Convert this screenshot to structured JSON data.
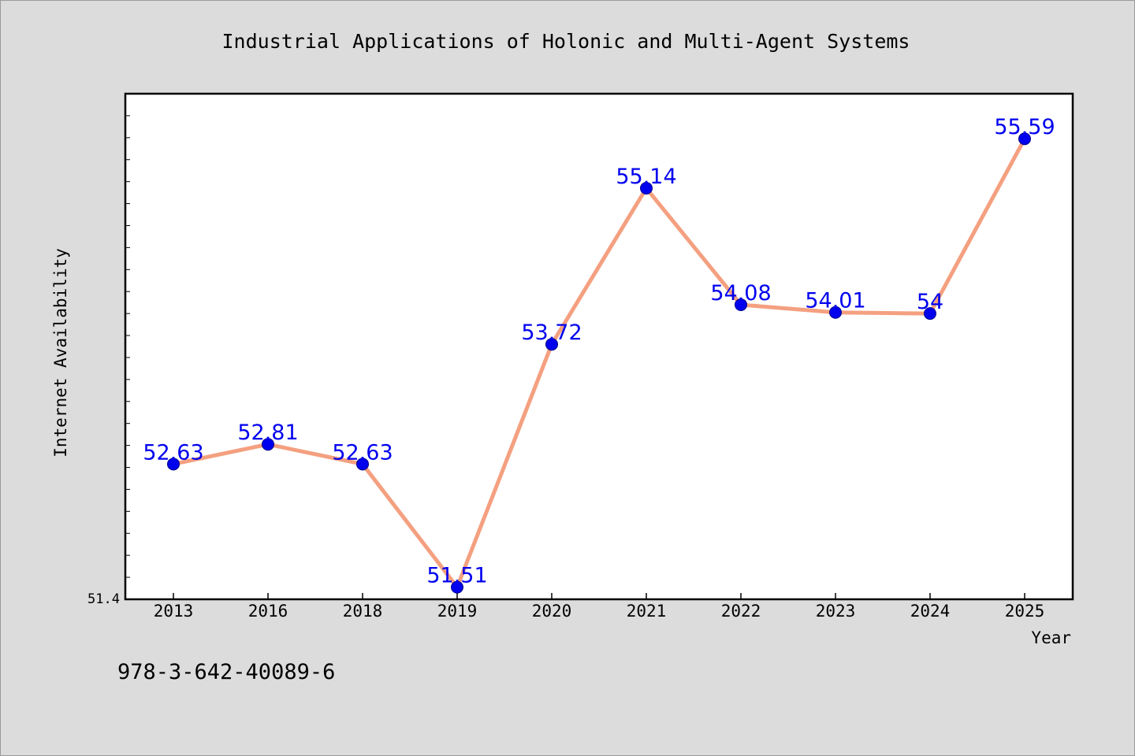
{
  "chart_data": {
    "type": "line",
    "title": "Industrial Applications of Holonic and Multi-Agent Systems",
    "xlabel": "Year",
    "ylabel": "Internet Availability",
    "categories": [
      "2013",
      "2016",
      "2018",
      "2019",
      "2020",
      "2021",
      "2022",
      "2023",
      "2024",
      "2025"
    ],
    "series": [
      {
        "values": [
          52.63,
          52.81,
          52.63,
          51.51,
          53.72,
          55.14,
          54.08,
          54.01,
          54,
          55.59
        ],
        "labels": [
          "52.63",
          "52.81",
          "52.63",
          "51.51",
          "53.72",
          "55.14",
          "54.08",
          "54.01",
          "54",
          "55.59"
        ]
      }
    ],
    "ylim": [
      51.4,
      56.0
    ],
    "ytick_label": "51.4",
    "grid": false,
    "line_color": "#f4a080",
    "marker_color": "#0000ee",
    "label_color": "#0000ee"
  },
  "footer": {
    "isbn": "978-3-642-40089-6"
  }
}
